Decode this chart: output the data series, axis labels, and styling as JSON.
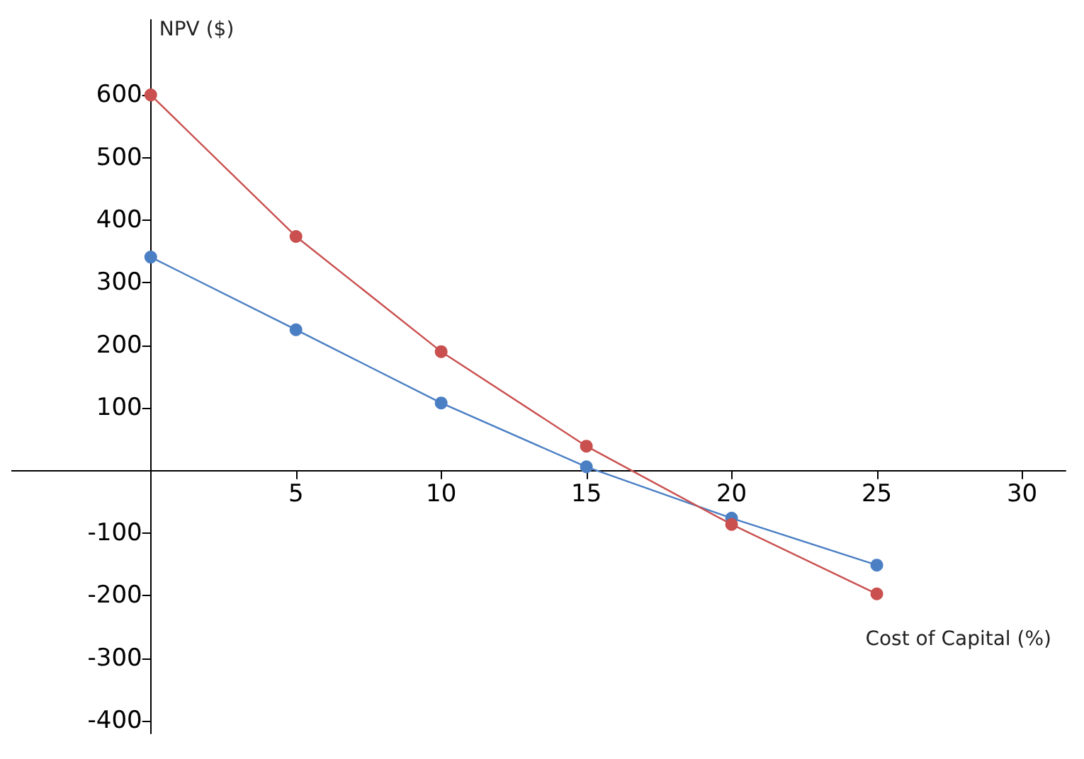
{
  "chart_data": {
    "type": "line",
    "xlabel": "Cost of Capital (%)",
    "ylabel": "NPV ($)",
    "x": [
      0,
      5,
      10,
      15,
      20,
      25
    ],
    "series": [
      {
        "color": "#c9504f",
        "values": [
          600,
          374,
          190,
          39,
          -86,
          -197
        ]
      },
      {
        "color": "#4a7fc4",
        "values": [
          341,
          225,
          108,
          6,
          -76,
          -151
        ]
      }
    ],
    "xlim": [
      -4.8,
      31.5
    ],
    "ylim": [
      -420,
      720
    ],
    "xticks": [
      5,
      10,
      15,
      20,
      25,
      30
    ],
    "yticks": [
      -400,
      -300,
      -200,
      -100,
      100,
      200,
      300,
      400,
      500,
      600
    ],
    "grid": false,
    "marker": "circle",
    "line_style": "solid"
  }
}
